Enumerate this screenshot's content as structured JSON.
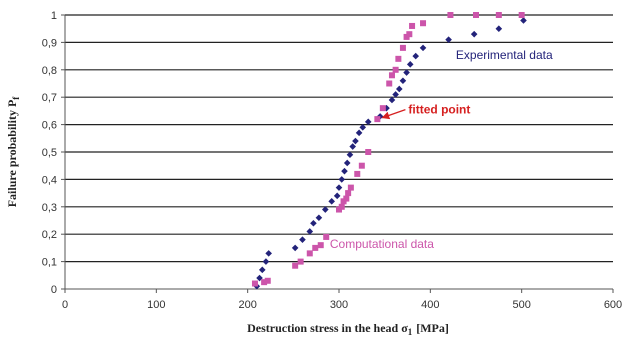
{
  "chart_data": {
    "type": "scatter",
    "title": "",
    "xlabel": "Destruction stress in the head σ",
    "xlabel_sub": "1",
    "xlabel_unit": "[MPa]",
    "ylabel": "Failure probability P",
    "ylabel_sub": "f",
    "xlim": [
      0,
      600
    ],
    "ylim": [
      0,
      1
    ],
    "xticks": [
      0,
      100,
      200,
      300,
      400,
      500,
      600
    ],
    "yticks": [
      0,
      0.1,
      0.2,
      0.3,
      0.4,
      0.5,
      0.6,
      0.7,
      0.8,
      0.9,
      1
    ],
    "ytick_labels": [
      "0",
      "0,1",
      "0,2",
      "0,3",
      "0,4",
      "0,5",
      "0,6",
      "0,7",
      "0,8",
      "0,9",
      "1"
    ],
    "grid": "horizontal",
    "series": [
      {
        "name": "Experimental data",
        "marker": "diamond",
        "color": "#23237a",
        "points": [
          [
            210,
            0.01
          ],
          [
            213,
            0.04
          ],
          [
            216,
            0.07
          ],
          [
            220,
            0.1
          ],
          [
            223,
            0.13
          ],
          [
            252,
            0.15
          ],
          [
            260,
            0.18
          ],
          [
            268,
            0.21
          ],
          [
            272,
            0.24
          ],
          [
            278,
            0.26
          ],
          [
            285,
            0.29
          ],
          [
            292,
            0.32
          ],
          [
            298,
            0.34
          ],
          [
            300,
            0.37
          ],
          [
            303,
            0.4
          ],
          [
            306,
            0.43
          ],
          [
            309,
            0.46
          ],
          [
            312,
            0.49
          ],
          [
            315,
            0.52
          ],
          [
            318,
            0.54
          ],
          [
            322,
            0.57
          ],
          [
            326,
            0.59
          ],
          [
            332,
            0.61
          ],
          [
            345,
            0.63
          ],
          [
            352,
            0.66
          ],
          [
            358,
            0.69
          ],
          [
            362,
            0.71
          ],
          [
            366,
            0.73
          ],
          [
            370,
            0.76
          ],
          [
            374,
            0.79
          ],
          [
            378,
            0.82
          ],
          [
            384,
            0.85
          ],
          [
            392,
            0.88
          ],
          [
            420,
            0.91
          ],
          [
            448,
            0.93
          ],
          [
            475,
            0.95
          ],
          [
            502,
            0.98
          ]
        ]
      },
      {
        "name": "Computational data",
        "marker": "square",
        "color": "#cc55aa",
        "points": [
          [
            208,
            0.02
          ],
          [
            218,
            0.025
          ],
          [
            222,
            0.03
          ],
          [
            252,
            0.085
          ],
          [
            258,
            0.1
          ],
          [
            268,
            0.13
          ],
          [
            274,
            0.15
          ],
          [
            280,
            0.16
          ],
          [
            286,
            0.19
          ],
          [
            300,
            0.29
          ],
          [
            303,
            0.3
          ],
          [
            305,
            0.32
          ],
          [
            308,
            0.33
          ],
          [
            310,
            0.35
          ],
          [
            313,
            0.37
          ],
          [
            320,
            0.42
          ],
          [
            325,
            0.45
          ],
          [
            332,
            0.5
          ],
          [
            342,
            0.62
          ],
          [
            348,
            0.66
          ],
          [
            355,
            0.75
          ],
          [
            358,
            0.78
          ],
          [
            362,
            0.8
          ],
          [
            365,
            0.84
          ],
          [
            370,
            0.88
          ],
          [
            374,
            0.92
          ],
          [
            377,
            0.93
          ],
          [
            380,
            0.96
          ],
          [
            392,
            0.97
          ],
          [
            422,
            1.0
          ],
          [
            450,
            1.0
          ],
          [
            475,
            1.0
          ],
          [
            500,
            1.0
          ]
        ]
      }
    ],
    "annotations": [
      {
        "text": "Experimental data",
        "x": 428,
        "y": 0.84,
        "color": "#23237a"
      },
      {
        "text": "Computational data",
        "x": 290,
        "y": 0.15,
        "color": "#cc55aa"
      },
      {
        "text": "fitted point",
        "x": 376,
        "y": 0.64,
        "color": "#d62020",
        "arrow_to": [
          343,
          0.625
        ]
      }
    ]
  }
}
